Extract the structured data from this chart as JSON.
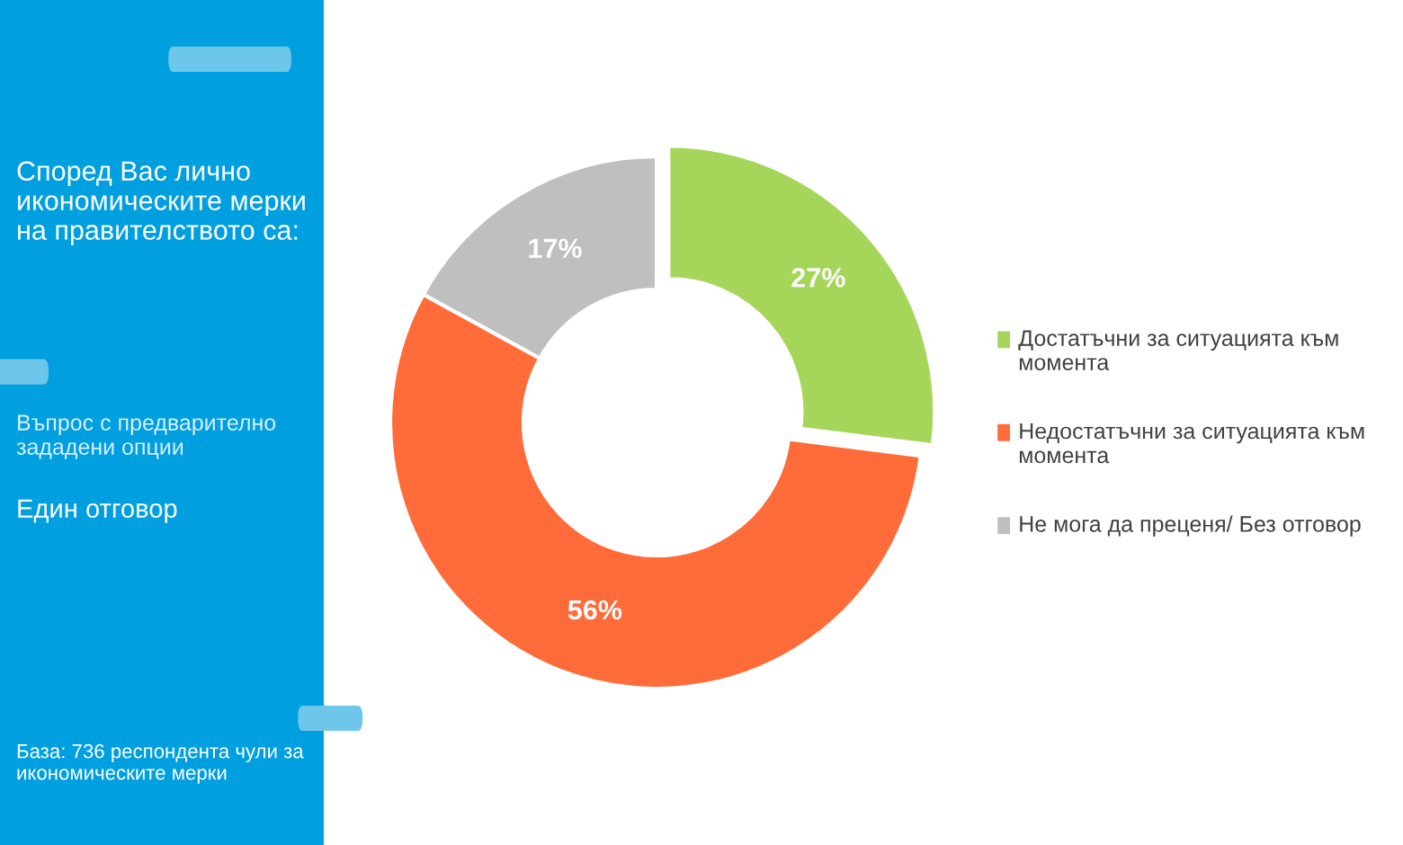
{
  "chart_data": {
    "type": "donut",
    "title": "Според Вас лично икономическите мерки на правителството са:",
    "subtitle": "Въпрос с предварително зададени опции",
    "annotations": [
      "Един отговор",
      "База: 736 респондента чули за икономическите мерки"
    ],
    "categories": [
      "Достатъчни за ситуацията към момента",
      "Недостатъчни за ситуацията към момента",
      "Не мога да преценя/ Без отговор"
    ],
    "values": [
      27,
      56,
      17
    ],
    "colors": [
      "#a5d65a",
      "#ff6b39",
      "#bfbfbf"
    ],
    "value_labels": [
      "27%",
      "56%",
      "17%"
    ],
    "legend": "right"
  }
}
